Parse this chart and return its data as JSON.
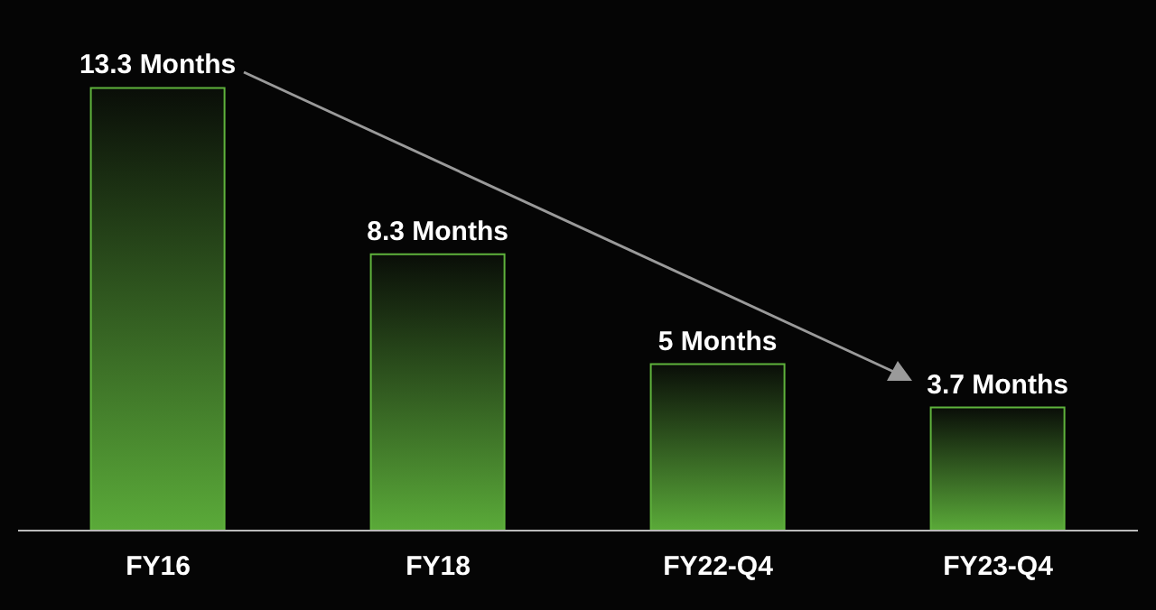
{
  "chart_data": {
    "type": "bar",
    "categories": [
      "FY16",
      "FY18",
      "FY22-Q4",
      "FY23-Q4"
    ],
    "values": [
      13.3,
      8.3,
      5,
      3.7
    ],
    "color": "#5fb33c",
    "value_labels": [
      "13.3 Months",
      "8.3 Months",
      "5 Months",
      "3.7 Months"
    ],
    "grid": false,
    "legend": false
  }
}
